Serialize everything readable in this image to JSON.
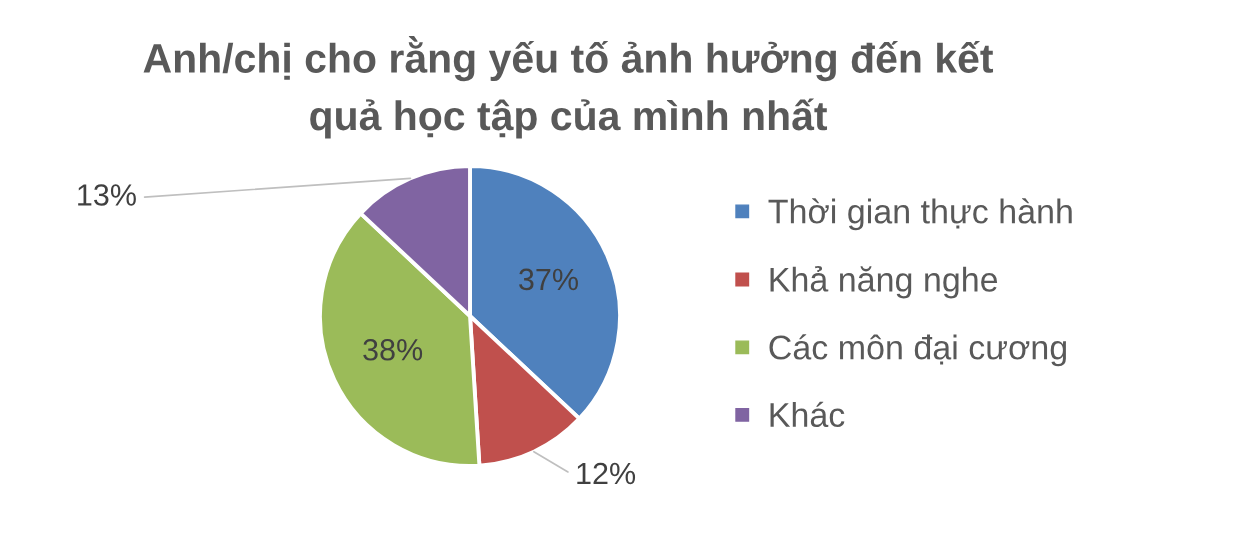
{
  "chart_data": {
    "type": "pie",
    "title": "Anh/chị cho rằng yếu tố ảnh hưởng đến kết\nquả học tập của mình nhất",
    "categories": [
      "Thời gian thực hành",
      "Khả năng nghe",
      "Các môn đại cương",
      "Khác"
    ],
    "values": [
      37,
      12,
      38,
      13
    ],
    "colors": [
      "#4f81bd",
      "#c0504d",
      "#9bbb59",
      "#8064a2"
    ],
    "value_labels": [
      "37%",
      "12%",
      "38%",
      "13%"
    ],
    "legend": "right"
  }
}
